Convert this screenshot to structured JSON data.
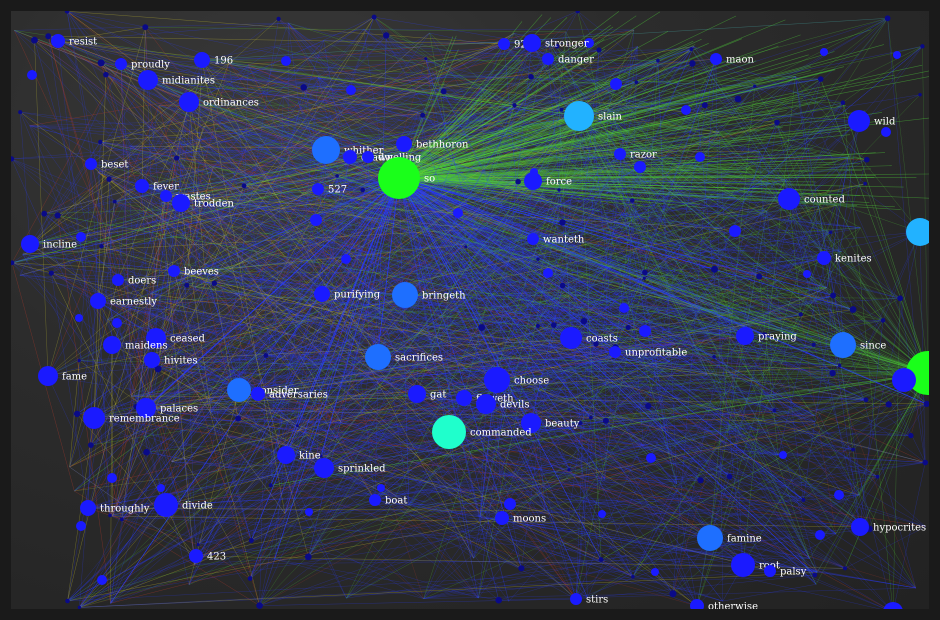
{
  "diagram": {
    "type": "network-graph",
    "colors": {
      "background": "#2b2b2b",
      "frame": "#1a1a1a",
      "node_blue": "#1a1aff",
      "node_mid_blue": "#1e6fff",
      "node_sky": "#22b2ff",
      "node_cyan": "#1fffcc",
      "node_green": "#1aff1a",
      "edge_blue": "#2a3cff",
      "edge_green": "#4fd13a",
      "edge_red": "#c0392b",
      "edge_yellow": "#c9c22f",
      "label": "#ffffff"
    },
    "nodes": [
      {
        "id": "resist",
        "label": "resist",
        "color": "blue"
      },
      {
        "id": "proudly",
        "label": "proudly",
        "color": "blue"
      },
      {
        "id": "196",
        "label": "196",
        "color": "blue"
      },
      {
        "id": "midianites",
        "label": "midianites",
        "color": "blue"
      },
      {
        "id": "ordinances",
        "label": "ordinances",
        "color": "blue"
      },
      {
        "id": "928",
        "label": "928",
        "color": "blue"
      },
      {
        "id": "stronger",
        "label": "stronger",
        "color": "blue"
      },
      {
        "id": "danger",
        "label": "danger",
        "color": "blue"
      },
      {
        "id": "maon",
        "label": "maon",
        "color": "blue"
      },
      {
        "id": "slain",
        "label": "slain",
        "color": "sky"
      },
      {
        "id": "wild",
        "label": "wild",
        "color": "blue"
      },
      {
        "id": "bethhoron",
        "label": "bethhoron",
        "color": "blue"
      },
      {
        "id": "whither",
        "label": "whither",
        "color": "mid"
      },
      {
        "id": "drawn",
        "label": "drawn",
        "color": "blue"
      },
      {
        "id": "dwell",
        "label": "dwelling",
        "color": "blue"
      },
      {
        "id": "so",
        "label": "so",
        "color": "green"
      },
      {
        "id": "razor",
        "label": "razor",
        "color": "blue"
      },
      {
        "id": "force",
        "label": "force",
        "color": "blue"
      },
      {
        "id": "beset",
        "label": "beset",
        "color": "blue"
      },
      {
        "id": "fever",
        "label": "fever",
        "color": "blue"
      },
      {
        "id": "wastes",
        "label": "wastes",
        "color": "blue"
      },
      {
        "id": "trodden",
        "label": "trodden",
        "color": "blue"
      },
      {
        "id": "527",
        "label": "527",
        "color": "blue"
      },
      {
        "id": "counted",
        "label": "counted",
        "color": "blue"
      },
      {
        "id": "incline",
        "label": "incline",
        "color": "blue"
      },
      {
        "id": "wanteth",
        "label": "wanteth",
        "color": "blue"
      },
      {
        "id": "kenites",
        "label": "kenites",
        "color": "blue"
      },
      {
        "id": "doers",
        "label": "doers",
        "color": "blue"
      },
      {
        "id": "beeves",
        "label": "beeves",
        "color": "blue"
      },
      {
        "id": "earnestly",
        "label": "earnestly",
        "color": "blue"
      },
      {
        "id": "purifying",
        "label": "purifying",
        "color": "blue"
      },
      {
        "id": "bringeth",
        "label": "bringeth",
        "color": "mid"
      },
      {
        "id": "ceased",
        "label": "ceased",
        "color": "blue"
      },
      {
        "id": "maidens",
        "label": "maidens",
        "color": "blue"
      },
      {
        "id": "coasts",
        "label": "coasts",
        "color": "blue"
      },
      {
        "id": "unprofitable",
        "label": "unprofitable",
        "color": "blue"
      },
      {
        "id": "praying",
        "label": "praying",
        "color": "blue"
      },
      {
        "id": "since",
        "label": "since",
        "color": "mid"
      },
      {
        "id": "hivites",
        "label": "hivites",
        "color": "blue"
      },
      {
        "id": "sacrifices",
        "label": "sacrifices",
        "color": "mid"
      },
      {
        "id": "fame",
        "label": "fame",
        "color": "blue"
      },
      {
        "id": "choose",
        "label": "choose",
        "color": "blue"
      },
      {
        "id": "consider",
        "label": "consider",
        "color": "mid"
      },
      {
        "id": "adversaries",
        "label": "adversaries",
        "color": "blue"
      },
      {
        "id": "gat",
        "label": "gat",
        "color": "blue"
      },
      {
        "id": "floweth",
        "label": "floweth",
        "color": "blue"
      },
      {
        "id": "devils",
        "label": "devils",
        "color": "blue"
      },
      {
        "id": "palaces",
        "label": "palaces",
        "color": "blue"
      },
      {
        "id": "remembrance",
        "label": "remembrance",
        "color": "blue"
      },
      {
        "id": "beauty",
        "label": "beauty",
        "color": "blue"
      },
      {
        "id": "commanded",
        "label": "commanded",
        "color": "cyan"
      },
      {
        "id": "kine",
        "label": "kine",
        "color": "blue"
      },
      {
        "id": "sprinkled",
        "label": "sprinkled",
        "color": "blue"
      },
      {
        "id": "boat",
        "label": "boat",
        "color": "blue"
      },
      {
        "id": "throughly",
        "label": "throughly",
        "color": "blue"
      },
      {
        "id": "divide",
        "label": "divide",
        "color": "blue"
      },
      {
        "id": "moons",
        "label": "moons",
        "color": "blue"
      },
      {
        "id": "famine",
        "label": "famine",
        "color": "mid"
      },
      {
        "id": "hypocrites",
        "label": "hypocrites",
        "color": "blue"
      },
      {
        "id": "root",
        "label": "root",
        "color": "blue"
      },
      {
        "id": "palsy",
        "label": "palsy",
        "color": "blue"
      },
      {
        "id": "423",
        "label": "423",
        "color": "blue"
      },
      {
        "id": "stirs",
        "label": "stirs",
        "color": "blue"
      },
      {
        "id": "otherwise",
        "label": "otherwise",
        "color": "blue"
      }
    ]
  }
}
